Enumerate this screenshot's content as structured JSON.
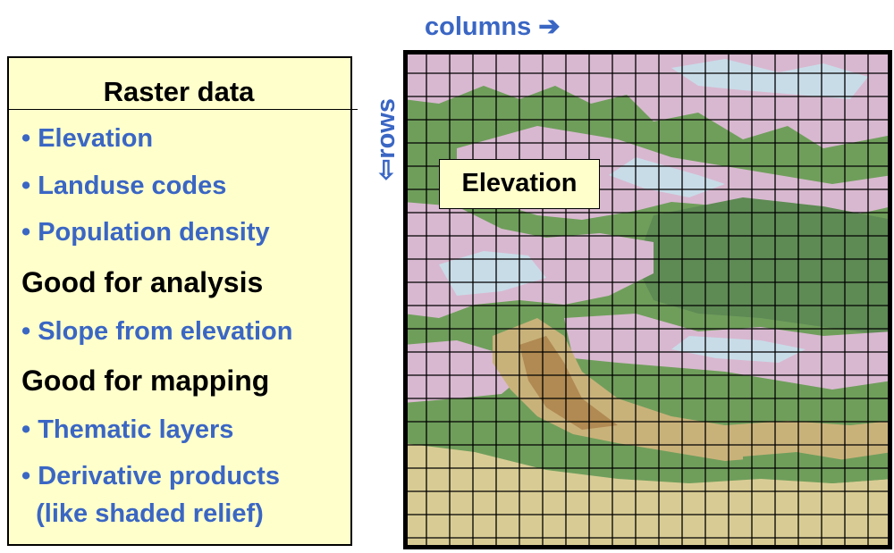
{
  "panel": {
    "title": "Raster data",
    "items": [
      {
        "type": "bullet",
        "text": "• Elevation"
      },
      {
        "type": "bullet",
        "text": "• Landuse codes"
      },
      {
        "type": "bullet",
        "text": "• Population density"
      },
      {
        "type": "heading",
        "text": "Good for analysis"
      },
      {
        "type": "bullet",
        "text": "• Slope from elevation"
      },
      {
        "type": "heading",
        "text": "Good for mapping"
      },
      {
        "type": "bullet",
        "text": "• Thematic layers"
      },
      {
        "type": "bullet",
        "text": "• Derivative products"
      },
      {
        "type": "bullet",
        "text": "  (like shaded relief)"
      }
    ]
  },
  "axes": {
    "columns_label": "columns ➔",
    "rows_label": "⇦rows"
  },
  "map": {
    "callout": "Elevation",
    "colors": {
      "dark_green": "#5e8a54",
      "green": "#6f9e5b",
      "pink": "#d8b8d0",
      "light_blue": "#c8dce8",
      "tan": "#c9b27a",
      "brown": "#b08a52",
      "khaki": "#d8cc94",
      "grid": "#000000",
      "label_blue": "#3a66c4",
      "panel_yellow": "#ffffcc"
    }
  }
}
